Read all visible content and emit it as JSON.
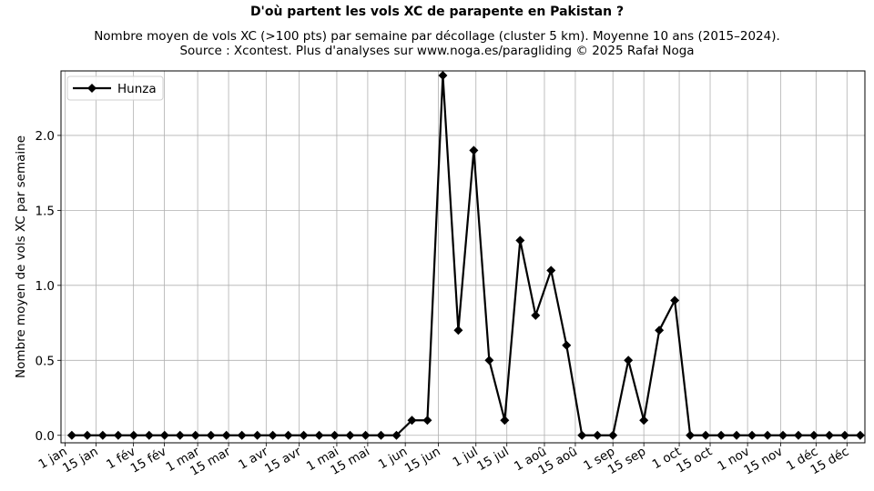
{
  "chart_data": {
    "type": "line",
    "title": "D'où partent les vols XC de parapente en Pakistan ?",
    "subtitle_lines": [
      "Nombre moyen de vols XC (>100 pts) par semaine par décollage (cluster 5 km). Moyenne 10 ans (2015–2024).",
      "Source : Xcontest. Plus d'analyses sur www.noga.es/paragliding © 2025 Rafał Noga"
    ],
    "xlabel": "",
    "ylabel": "Nombre moyen de vols XC par semaine",
    "ylim": [
      -0.05,
      2.43
    ],
    "yticks": [
      0.0,
      0.5,
      1.0,
      1.5,
      2.0
    ],
    "ytick_labels": [
      "0.0",
      "0.5",
      "1.0",
      "1.5",
      "2.0"
    ],
    "x_is_week_index": true,
    "xlim": [
      -0.7,
      51.3
    ],
    "xticks": [
      -0.43,
      1.57,
      3.99,
      5.99,
      8.14,
      10.14,
      12.57,
      14.71,
      17.14,
      19.14,
      21.57,
      23.71,
      26.14,
      28.14,
      30.57,
      32.57,
      35.0,
      37.0,
      39.29,
      41.29,
      43.71,
      45.86,
      48.14,
      50.14
    ],
    "xtick_labels": [
      "1 jan",
      "15 jan",
      "1 fév",
      "15 fév",
      "1 mar",
      "15 mar",
      "1 avr",
      "15 avr",
      "1 mai",
      "15 mai",
      "1 jun",
      "15 jun",
      "1 jul",
      "15 jul",
      "1 aoû",
      "15 aoû",
      "1 sep",
      "15 sep",
      "1 oct",
      "15 oct",
      "1 nov",
      "15 nov",
      "1 déc",
      "15 déc"
    ],
    "grid": true,
    "legend_position": "top-left",
    "series": [
      {
        "name": "Hunza",
        "color": "#000000",
        "marker": "diamond",
        "values": [
          0,
          0,
          0,
          0,
          0,
          0,
          0,
          0,
          0,
          0,
          0,
          0,
          0,
          0,
          0,
          0,
          0,
          0,
          0,
          0,
          0,
          0,
          0.1,
          0.1,
          2.4,
          0.7,
          1.9,
          0.5,
          0.1,
          1.3,
          0.8,
          1.1,
          0.6,
          0,
          0,
          0,
          0.5,
          0.1,
          0.7,
          0.9,
          0,
          0,
          0,
          0,
          0,
          0,
          0,
          0,
          0,
          0,
          0,
          0
        ]
      }
    ]
  }
}
